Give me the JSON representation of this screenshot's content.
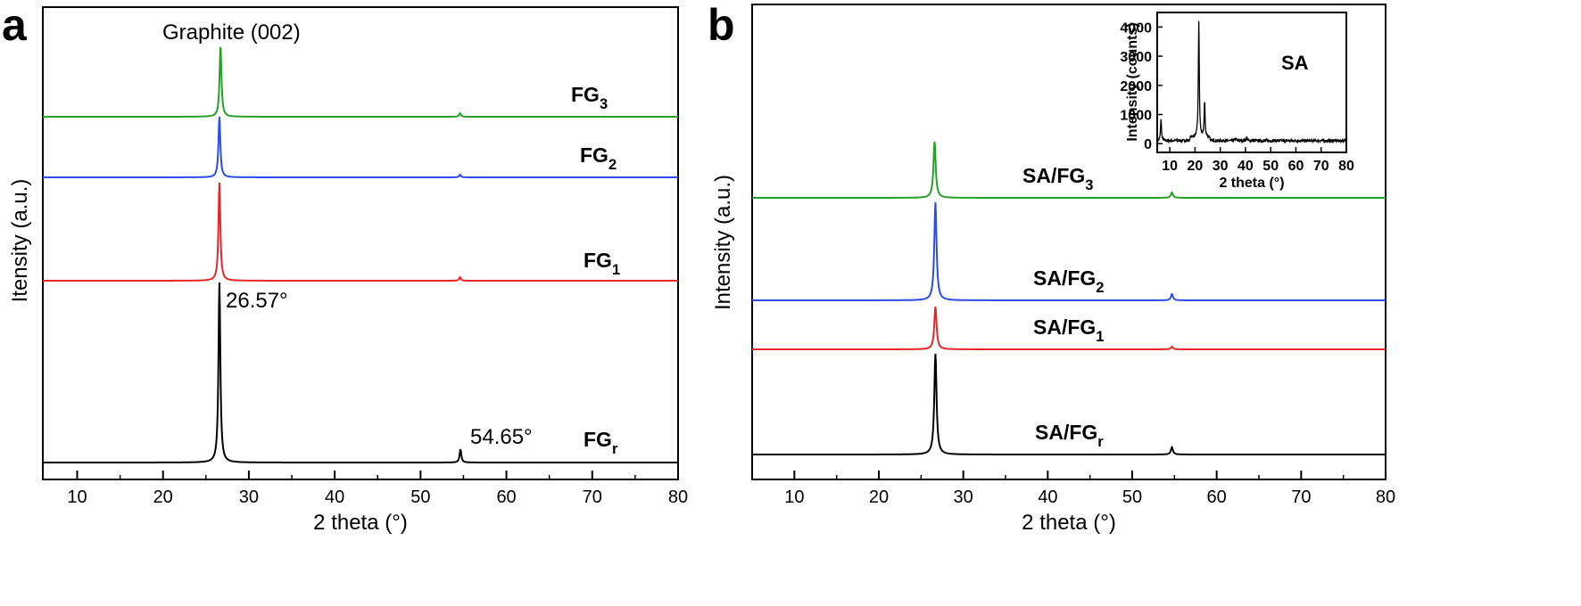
{
  "chart_data": [
    {
      "panel": "a",
      "type": "line",
      "title": "",
      "xlabel": "2 theta (°)",
      "ylabel": "Itensity (a.u.)",
      "xlim": [
        6,
        80
      ],
      "xticks": [
        10,
        20,
        30,
        40,
        50,
        60,
        70,
        80
      ],
      "grid": false,
      "annotations": [
        {
          "text": "Graphite (002)",
          "x": 27
        },
        {
          "text": "26.57°",
          "x": 26.57
        },
        {
          "text": "54.65°",
          "x": 54.65
        }
      ],
      "series": [
        {
          "name": "FG",
          "sub": "r",
          "color": "#000000",
          "baseline": 0,
          "peaks": [
            {
              "x": 26.57,
              "h": 202
            },
            {
              "x": 54.65,
              "h": 15
            }
          ]
        },
        {
          "name": "FG",
          "sub": "1",
          "color": "#e8262a",
          "baseline": 204,
          "peaks": [
            {
              "x": 26.57,
              "h": 110
            },
            {
              "x": 54.6,
              "h": 4
            }
          ]
        },
        {
          "name": "FG",
          "sub": "2",
          "color": "#2b4ce8",
          "baseline": 320,
          "peaks": [
            {
              "x": 26.57,
              "h": 68
            },
            {
              "x": 54.6,
              "h": 3
            }
          ]
        },
        {
          "name": "FG",
          "sub": "3",
          "color": "#28a028",
          "baseline": 388,
          "peaks": [
            {
              "x": 26.7,
              "h": 80
            },
            {
              "x": 54.6,
              "h": 4
            }
          ]
        }
      ]
    },
    {
      "panel": "b",
      "type": "line",
      "title": "",
      "xlabel": "2 theta (°)",
      "ylabel": "Intensity (a.u.)",
      "xlim": [
        5,
        80
      ],
      "xticks": [
        10,
        20,
        30,
        40,
        50,
        60,
        70,
        80
      ],
      "grid": false,
      "series": [
        {
          "name": "SA/FG",
          "sub": "r",
          "color": "#000000",
          "baseline": 0,
          "peaks": [
            {
              "x": 26.7,
              "h": 113
            },
            {
              "x": 54.7,
              "h": 8
            }
          ]
        },
        {
          "name": "SA/FG",
          "sub": "1",
          "color": "#e8262a",
          "baseline": 118,
          "peaks": [
            {
              "x": 26.7,
              "h": 48
            },
            {
              "x": 54.7,
              "h": 3
            }
          ]
        },
        {
          "name": "SA/FG",
          "sub": "2",
          "color": "#2b4ce8",
          "baseline": 173,
          "peaks": [
            {
              "x": 26.7,
              "h": 110
            },
            {
              "x": 54.7,
              "h": 7
            }
          ]
        },
        {
          "name": "SA/FG",
          "sub": "3",
          "color": "#28a028",
          "baseline": 288,
          "peaks": [
            {
              "x": 26.6,
              "h": 63
            },
            {
              "x": 54.7,
              "h": 6
            }
          ]
        }
      ],
      "inset": {
        "type": "line",
        "label": "SA",
        "xlabel": "2 theta (°)",
        "ylabel": "Intensity (counts)",
        "xlim": [
          5,
          80
        ],
        "ylim": [
          -300,
          4500
        ],
        "xticks": [
          10,
          20,
          30,
          40,
          50,
          60,
          70,
          80
        ],
        "yticks": [
          0,
          1000,
          2000,
          3000,
          4000
        ],
        "color": "#000000",
        "baseline": 100,
        "peaks": [
          {
            "x": 6.5,
            "h": 750
          },
          {
            "x": 21.5,
            "h": 4000
          },
          {
            "x": 23.8,
            "h": 1200
          },
          {
            "x": 36.0,
            "h": 80
          },
          {
            "x": 40.5,
            "h": 120
          }
        ]
      }
    }
  ],
  "labels": {
    "panel_a": "a",
    "panel_b": "b"
  }
}
